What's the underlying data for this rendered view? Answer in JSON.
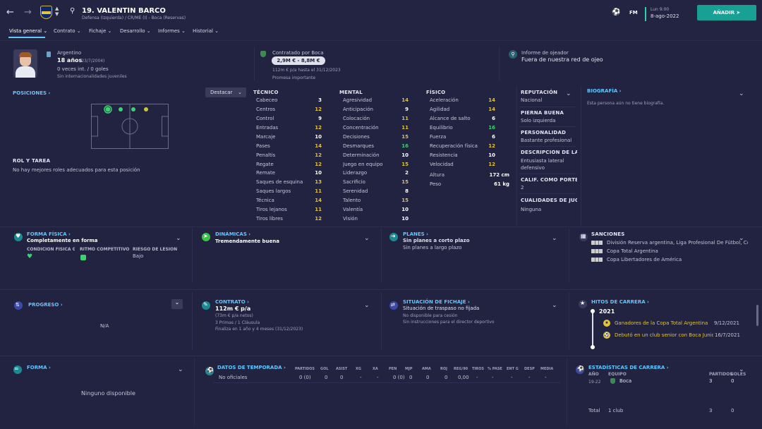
{
  "player": {
    "number_name": "19. VALENTÍN BARCO",
    "subtitle": "Defensa (Izquierda) / CR/ME (I) - Boca (Reservas)",
    "nationality": "Argentino",
    "age": "18 años",
    "dob": "(23/7/2004)",
    "caps": "0 veces int. / 0 goles",
    "youth": "Sin internacionalidades juveniles"
  },
  "top": {
    "date_day": "Lun 9:00",
    "date": "8-ago-2022",
    "fm": "FM",
    "add_button": "AÑADIR"
  },
  "tabs": [
    "Vista general",
    "Contrato",
    "Fichaje",
    "Desarrollo",
    "Informes",
    "Historial"
  ],
  "contract_box": {
    "label": "Contratado por Boca",
    "value": "2,9M € - 8,8M €",
    "wage": "112m € p/a hasta el 31/12/2023",
    "promise": "Promesa importante"
  },
  "scout": {
    "label": "Informe de ojeador",
    "value": "Fuera de nuestra red de ojeo"
  },
  "positions": {
    "title": "POSICIONES",
    "highlight": "Destacar",
    "role_title": "ROL Y TAREA",
    "role_text": "No hay mejores roles adecuados para esta posición"
  },
  "technical": {
    "title": "TÉCNICO",
    "items": [
      [
        "Cabeceo",
        "3"
      ],
      [
        "Centros",
        "12"
      ],
      [
        "Control",
        "9"
      ],
      [
        "Entradas",
        "12"
      ],
      [
        "Marcaje",
        "10"
      ],
      [
        "Pases",
        "14"
      ],
      [
        "Penaltis",
        "12"
      ],
      [
        "Regate",
        "12"
      ],
      [
        "Remate",
        "10"
      ],
      [
        "Saques de esquina",
        "13"
      ],
      [
        "Saques largos",
        "11"
      ],
      [
        "Técnica",
        "14"
      ],
      [
        "Tiros lejanos",
        "11"
      ],
      [
        "Tiros libres",
        "12"
      ]
    ]
  },
  "mental": {
    "title": "MENTAL",
    "items": [
      [
        "Agresividad",
        "14"
      ],
      [
        "Anticipación",
        "9"
      ],
      [
        "Colocación",
        "11"
      ],
      [
        "Concentración",
        "11"
      ],
      [
        "Decisiones",
        "15"
      ],
      [
        "Desmarques",
        "16"
      ],
      [
        "Determinación",
        "10"
      ],
      [
        "Juego en equipo",
        "15"
      ],
      [
        "Liderazgo",
        "2"
      ],
      [
        "Sacrificio",
        "15"
      ],
      [
        "Serenidad",
        "8"
      ],
      [
        "Talento",
        "15"
      ],
      [
        "Valentía",
        "10"
      ],
      [
        "Visión",
        "10"
      ]
    ]
  },
  "physical": {
    "title": "FÍSICO",
    "items": [
      [
        "Aceleración",
        "14"
      ],
      [
        "Agilidad",
        "14"
      ],
      [
        "Alcance de salto",
        "6"
      ],
      [
        "Equilibrio",
        "16"
      ],
      [
        "Fuerza",
        "6"
      ],
      [
        "Recuperación física",
        "12"
      ],
      [
        "Resistencia",
        "10"
      ],
      [
        "Velocidad",
        "12"
      ]
    ],
    "height_label": "Altura",
    "height": "172 cm",
    "weight_label": "Peso",
    "weight": "61 kg"
  },
  "info": {
    "rep_title": "REPUTACIÓN",
    "rep": "Nacional",
    "foot_title": "PIERNA BUENA",
    "foot": "Solo izquierda",
    "pers_title": "PERSONALIDAD",
    "pers": "Bastante profesional",
    "desc_title": "DESCRIPCIÓN DE LA...",
    "desc1": "Entusiasta lateral",
    "desc2": "defensivo",
    "calif_title": "CALIF. COMO PORTE...",
    "calif": "2",
    "qual_title": "CUALIDADES DE JUGAD",
    "qual": "Ninguna"
  },
  "bio": {
    "title": "BIOGRAFÍA",
    "text": "Esta persona aún no tiene biografía."
  },
  "fitness": {
    "title": "FORMA FÍSICA",
    "value": "Completamente en forma",
    "h1": "CONDICIÓN FÍSICA GL...",
    "h2": "RITMO COMPETITIVO",
    "h3": "RIESGO DE LESIÓN",
    "h3v": "Bajo"
  },
  "dynamics": {
    "title": "DINÁMICAS",
    "value": "Tremendamente buena"
  },
  "plans": {
    "title": "PLANES",
    "l1": "Sin planes a corto plazo",
    "l2": "Sin planes a largo plazo"
  },
  "sanctions": {
    "title": "SANCIONES",
    "items": [
      "División Reserva argentina, Liga Profesional De Fútbol, Copa...",
      "Copa Total Argentina",
      "Copa Libertadores de América"
    ]
  },
  "progress": {
    "title": "PROGRESO",
    "value": "N/A"
  },
  "contract": {
    "title": "CONTRATO",
    "wage": "112m € p/a",
    "l1": "(73m € p/a netos)",
    "l2": "3 Primas / 1 Cláusula",
    "l3": "Finaliza en 1 año y 4 meses (31/12/2023)"
  },
  "transfer": {
    "title": "SITUACIÓN DE FICHAJE",
    "l0": "Situación de traspaso no fijada",
    "l1": "No disponible para cesión",
    "l2": "Sin instrucciones para el director deportivo"
  },
  "milestones": {
    "title": "HITOS DE CARRERA",
    "year": "2021",
    "items": [
      [
        "Ganadores de la Copa Total Argentina",
        "9/12/2021"
      ],
      [
        "Debutó en un club senior con Boca Junior...",
        "16/7/2021"
      ]
    ]
  },
  "form": {
    "title": "FORMA",
    "value": "Ninguno disponible"
  },
  "season": {
    "title": "DATOS DE TEMPORADA",
    "cols": [
      "PARTIDOS",
      "GOL",
      "ASIST",
      "XG",
      "XA",
      "PEN",
      "MJP",
      "AMA",
      "ROJ",
      "REG/90",
      "TIROS",
      "% PASE",
      "ENT G",
      "DESP",
      "MEDIA"
    ],
    "row_label": "No oficiales",
    "row": [
      "0 (0)",
      "0",
      "0",
      "-",
      "-",
      "0 (0)",
      "0",
      "0",
      "0",
      "0,00",
      "-",
      "-",
      "-",
      "-",
      "-"
    ]
  },
  "career": {
    "title": "ESTADÍSTICAS DE CARRERA",
    "h_year": "AÑO",
    "h_team": "EQUIPO",
    "h_part": "PARTIDOS",
    "h_goals": "GOLES",
    "year": "19-22",
    "team": "Boca",
    "part": "3",
    "goals": "0",
    "total_label": "Total",
    "total_clubs": "1 club",
    "total_part": "3",
    "total_goals": "0"
  }
}
